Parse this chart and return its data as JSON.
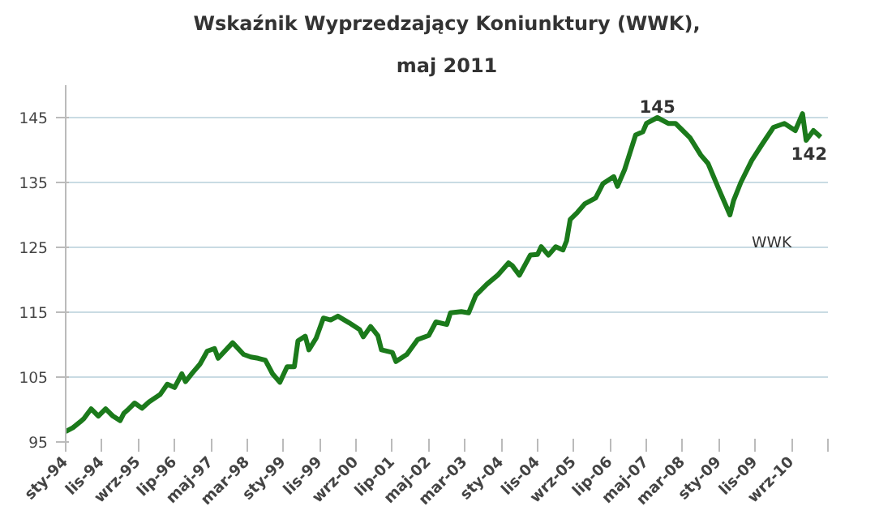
{
  "chart_data": {
    "type": "line",
    "title": "Wskaźnik Wyprzedzający Koniunktury (WWK),",
    "subtitle": "maj 2011",
    "x": [
      "1994-01",
      "1994-03",
      "1994-05",
      "1994-06",
      "1994-08",
      "1994-10",
      "1994-12",
      "1995-02",
      "1995-04",
      "1995-05",
      "1995-06",
      "1995-08",
      "1995-10",
      "1995-12",
      "1996-03",
      "1996-05",
      "1996-07",
      "1996-09",
      "1996-10",
      "1996-12",
      "1997-02",
      "1997-04",
      "1997-06",
      "1997-07",
      "1997-11",
      "1998-02",
      "1998-04",
      "1998-06",
      "1998-08",
      "1998-10",
      "1998-12",
      "1999-02",
      "1999-04",
      "1999-05",
      "1999-07",
      "1999-08",
      "1999-10",
      "1999-12",
      "2000-02",
      "2000-04",
      "2000-07",
      "2000-10",
      "2000-11",
      "2001-01",
      "2001-03",
      "2001-04",
      "2001-07",
      "2001-08",
      "2001-11",
      "2002-02",
      "2002-05",
      "2002-07",
      "2002-10",
      "2002-11",
      "2003-02",
      "2003-04",
      "2003-06",
      "2003-09",
      "2003-12",
      "2004-03",
      "2004-04",
      "2004-06",
      "2004-09",
      "2004-11",
      "2004-12",
      "2005-02",
      "2005-04",
      "2005-06",
      "2005-07",
      "2005-08",
      "2005-10",
      "2005-12",
      "2006-03",
      "2006-05",
      "2006-08",
      "2006-09",
      "2006-11",
      "2007-02",
      "2007-04",
      "2007-05",
      "2007-08",
      "2007-11",
      "2008-01",
      "2008-03",
      "2008-05",
      "2008-08",
      "2008-10",
      "2009-01",
      "2009-04",
      "2009-05",
      "2009-07",
      "2009-10",
      "2010-01",
      "2010-04",
      "2010-07",
      "2010-10",
      "2010-12",
      "2011-01",
      "2011-03",
      "2011-05"
    ],
    "series": [
      {
        "name": "WWK",
        "color": "#1b7a1b",
        "values": [
          96.6,
          97.2,
          98.1,
          98.6,
          100.1,
          99.0,
          100.1,
          99.0,
          98.3,
          99.4,
          99.9,
          101.0,
          100.2,
          101.2,
          102.3,
          103.9,
          103.4,
          105.5,
          104.3,
          105.7,
          107.0,
          109.0,
          109.4,
          107.9,
          110.3,
          108.5,
          108.1,
          107.9,
          107.6,
          105.5,
          104.2,
          106.6,
          106.6,
          110.6,
          111.3,
          109.2,
          111.0,
          114.1,
          113.8,
          114.4,
          113.4,
          112.3,
          111.2,
          112.8,
          111.4,
          109.2,
          108.8,
          107.4,
          108.5,
          110.8,
          111.4,
          113.5,
          113.1,
          114.9,
          115.1,
          114.9,
          117.6,
          119.3,
          120.7,
          122.6,
          122.2,
          120.7,
          123.8,
          123.9,
          125.1,
          123.8,
          125.1,
          124.6,
          126.0,
          129.3,
          130.4,
          131.7,
          132.6,
          134.8,
          135.9,
          134.4,
          137.0,
          142.3,
          142.8,
          144.1,
          145,
          144.1,
          144.1,
          143.0,
          141.9,
          139.2,
          137.9,
          133.9,
          130.0,
          132.2,
          135.0,
          138.4,
          141.0,
          143.5,
          144.1,
          143.0,
          145.6,
          141.5,
          143.0,
          142
        ]
      }
    ],
    "xlim": [
      "1994-01",
      "2011-07"
    ],
    "xticks": [
      {
        "value": "1994-01",
        "label": "sty-94"
      },
      {
        "value": "1994-11",
        "label": "lis-94"
      },
      {
        "value": "1995-09",
        "label": "wrz-95"
      },
      {
        "value": "1996-07",
        "label": "lip-96"
      },
      {
        "value": "1997-05",
        "label": "maj-97"
      },
      {
        "value": "1998-03",
        "label": "mar-98"
      },
      {
        "value": "1999-01",
        "label": "sty-99"
      },
      {
        "value": "1999-11",
        "label": "lis-99"
      },
      {
        "value": "2000-09",
        "label": "wrz-00"
      },
      {
        "value": "2001-07",
        "label": "lip-01"
      },
      {
        "value": "2002-05",
        "label": "maj-02"
      },
      {
        "value": "2003-03",
        "label": "mar-03"
      },
      {
        "value": "2004-01",
        "label": "sty-04"
      },
      {
        "value": "2004-11",
        "label": "lis-04"
      },
      {
        "value": "2005-09",
        "label": "wrz-05"
      },
      {
        "value": "2006-07",
        "label": "lip-06"
      },
      {
        "value": "2007-05",
        "label": "maj-07"
      },
      {
        "value": "2008-03",
        "label": "mar-08"
      },
      {
        "value": "2009-01",
        "label": "sty-09"
      },
      {
        "value": "2009-11",
        "label": "lis-09"
      },
      {
        "value": "2010-09",
        "label": "wrz-10"
      },
      {
        "value": "2011-07",
        "label": null
      }
    ],
    "ylim": [
      95,
      150
    ],
    "yticks": [
      95,
      105,
      115,
      125,
      135,
      145
    ],
    "grid": "y",
    "marker": "none",
    "line_style": "solid",
    "annotations": [
      {
        "text": "145",
        "x": "2007-08",
        "y": 145
      },
      {
        "text": "142",
        "x": "2011-05",
        "y": 142
      }
    ]
  }
}
